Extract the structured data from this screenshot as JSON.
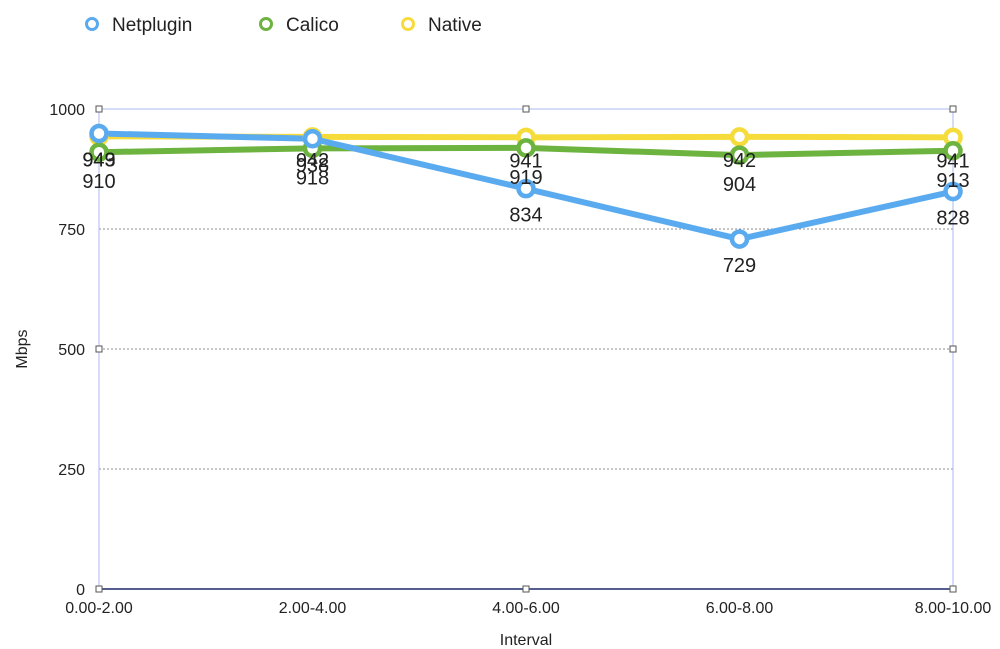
{
  "chart_data": {
    "type": "line",
    "xlabel": "Interval",
    "ylabel": "Mbps",
    "ylim": [
      0,
      1000
    ],
    "yticks": [
      "0",
      "250",
      "500",
      "750",
      "1000"
    ],
    "categories": [
      "0.00-2.00",
      "2.00-4.00",
      "4.00-6.00",
      "6.00-8.00",
      "8.00-10.00"
    ],
    "legend_position": "top-left",
    "grid": true,
    "series": [
      {
        "name": "Native",
        "color": "#f5dc3b",
        "values": [
          943,
          942,
          941,
          942,
          941
        ],
        "labels": [
          "943",
          "942",
          "941",
          "942",
          "941"
        ]
      },
      {
        "name": "Calico",
        "color": "#6db33f",
        "values": [
          910,
          918,
          919,
          904,
          913
        ],
        "labels": [
          "910",
          "918",
          "919",
          "904",
          "913"
        ]
      },
      {
        "name": "Netplugin",
        "color": "#5aaaf0",
        "values": [
          949,
          938,
          834,
          729,
          828
        ],
        "labels": [
          "949",
          "938",
          "834",
          "729",
          "828"
        ]
      }
    ],
    "legend_order": [
      "Netplugin",
      "Calico",
      "Native"
    ]
  }
}
